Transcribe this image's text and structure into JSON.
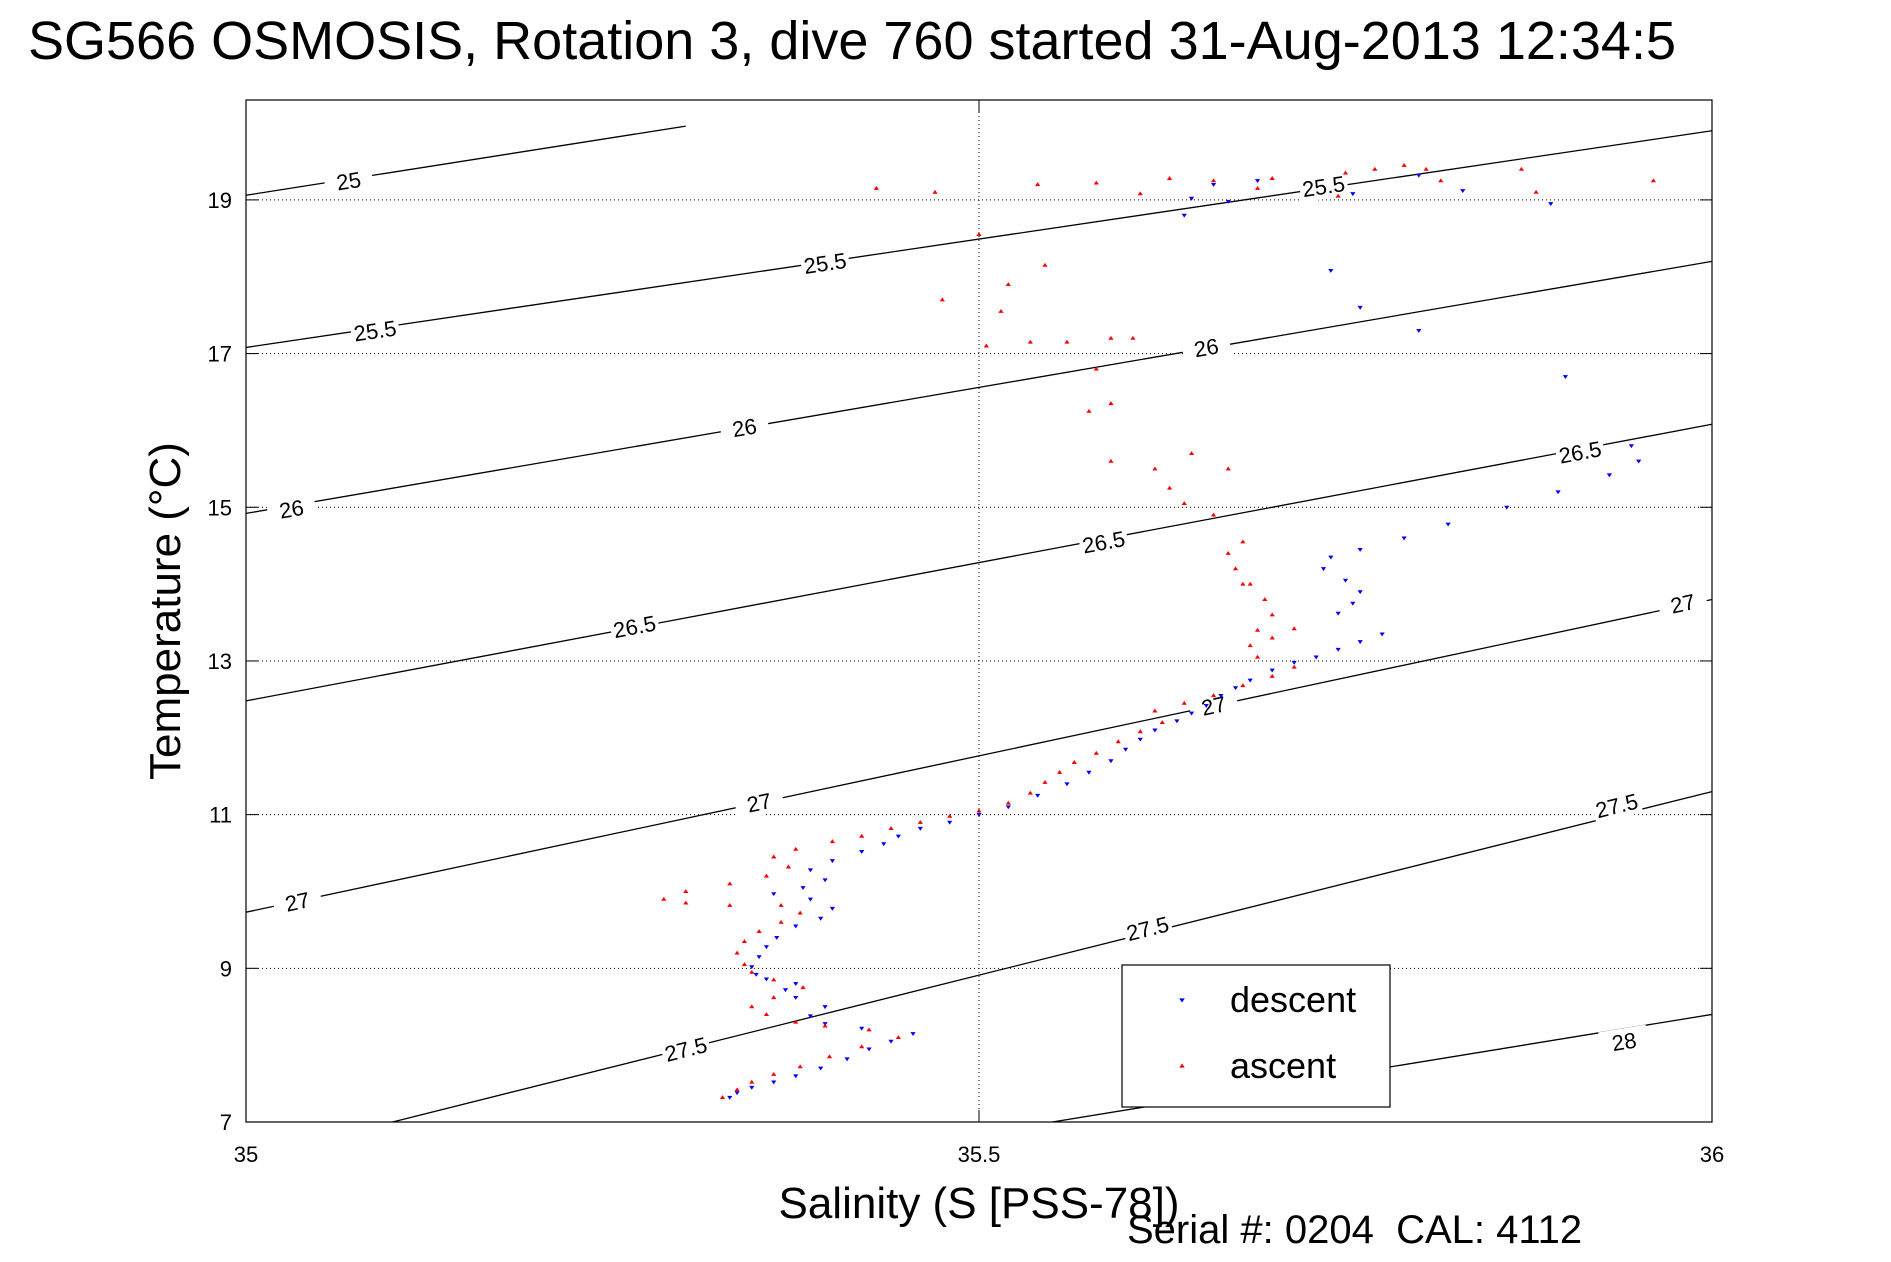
{
  "page": {
    "title": "SG566 OSMOSIS, Rotation 3, dive 760 started 31-Aug-2013 12:34:5",
    "footer": "Serial #: 0204  CAL: 4112"
  },
  "chart_data": {
    "type": "scatter",
    "title": "SG566 OSMOSIS, Rotation 3, dive 760 started 31-Aug-2013 12:34:5",
    "xlabel": "Salinity (S [PSS-78])",
    "ylabel": "Temperature (°C)",
    "xlim": [
      35,
      36
    ],
    "ylim": [
      7,
      20.3
    ],
    "x_ticks": [
      35,
      35.5,
      36
    ],
    "x_tick_labels": [
      "35",
      "35.5",
      "36"
    ],
    "y_ticks": [
      7,
      9,
      11,
      13,
      15,
      17,
      19
    ],
    "y_tick_labels": [
      "7",
      "9",
      "11",
      "13",
      "15",
      "17",
      "19"
    ],
    "grid": "dotted",
    "legend": {
      "placement": "bottom-right-inside",
      "entries": [
        "descent",
        "ascent"
      ]
    },
    "density_contours": [
      {
        "label": "25",
        "points": [
          [
            35.0,
            19.06
          ],
          [
            35.3,
            19.96
          ]
        ],
        "labels_at": [
          [
            35.07,
            19.25
          ]
        ]
      },
      {
        "label": "25.5",
        "points": [
          [
            35.0,
            17.08
          ],
          [
            36.0,
            19.9
          ]
        ],
        "labels_at": [
          [
            35.088,
            17.3
          ],
          [
            35.395,
            18.18
          ],
          [
            35.735,
            19.18
          ]
        ]
      },
      {
        "label": "26",
        "points": [
          [
            35.0,
            14.92
          ],
          [
            36.0,
            18.2
          ]
        ],
        "labels_at": [
          [
            35.031,
            14.98
          ],
          [
            35.34,
            16.04
          ],
          [
            35.655,
            17.08
          ]
        ]
      },
      {
        "label": "26.5",
        "points": [
          [
            35.0,
            12.48
          ],
          [
            36.0,
            16.08
          ]
        ],
        "labels_at": [
          [
            35.265,
            13.45
          ],
          [
            35.585,
            14.55
          ],
          [
            35.91,
            15.72
          ]
        ]
      },
      {
        "label": "27",
        "points": [
          [
            35.0,
            9.73
          ],
          [
            36.0,
            13.8
          ]
        ],
        "labels_at": [
          [
            35.035,
            9.87
          ],
          [
            35.35,
            11.16
          ],
          [
            35.66,
            12.42
          ],
          [
            35.98,
            13.75
          ]
        ]
      },
      {
        "label": "27.5",
        "points": [
          [
            35.1,
            7.0
          ],
          [
            36.0,
            11.3
          ]
        ],
        "labels_at": [
          [
            35.3,
            7.95
          ],
          [
            35.615,
            9.52
          ],
          [
            35.935,
            11.12
          ]
        ]
      },
      {
        "label": "28",
        "points": [
          [
            35.55,
            7.0
          ],
          [
            36.0,
            8.4
          ]
        ],
        "labels_at": [
          [
            35.94,
            8.05
          ]
        ]
      }
    ],
    "series": [
      {
        "name": "descent",
        "color": "#0000ff",
        "marker": "triangle-down",
        "points": [
          [
            35.33,
            7.32
          ],
          [
            35.335,
            7.38
          ],
          [
            35.345,
            7.45
          ],
          [
            35.36,
            7.52
          ],
          [
            35.375,
            7.6
          ],
          [
            35.392,
            7.7
          ],
          [
            35.41,
            7.82
          ],
          [
            35.425,
            7.95
          ],
          [
            35.44,
            8.05
          ],
          [
            35.455,
            8.15
          ],
          [
            35.42,
            8.22
          ],
          [
            35.395,
            8.28
          ],
          [
            35.385,
            8.38
          ],
          [
            35.395,
            8.5
          ],
          [
            35.375,
            8.62
          ],
          [
            35.368,
            8.72
          ],
          [
            35.375,
            8.8
          ],
          [
            35.355,
            8.86
          ],
          [
            35.348,
            8.92
          ],
          [
            35.345,
            9.02
          ],
          [
            35.35,
            9.15
          ],
          [
            35.355,
            9.28
          ],
          [
            35.362,
            9.4
          ],
          [
            35.375,
            9.55
          ],
          [
            35.392,
            9.65
          ],
          [
            35.4,
            9.78
          ],
          [
            35.385,
            9.9
          ],
          [
            35.36,
            9.97
          ],
          [
            35.38,
            10.05
          ],
          [
            35.395,
            10.15
          ],
          [
            35.385,
            10.28
          ],
          [
            35.4,
            10.4
          ],
          [
            35.42,
            10.52
          ],
          [
            35.435,
            10.62
          ],
          [
            35.445,
            10.72
          ],
          [
            35.46,
            10.82
          ],
          [
            35.48,
            10.9
          ],
          [
            35.5,
            11.0
          ],
          [
            35.52,
            11.1
          ],
          [
            35.54,
            11.25
          ],
          [
            35.56,
            11.4
          ],
          [
            35.575,
            11.55
          ],
          [
            35.59,
            11.7
          ],
          [
            35.6,
            11.85
          ],
          [
            35.61,
            11.98
          ],
          [
            35.62,
            12.1
          ],
          [
            35.635,
            12.22
          ],
          [
            35.645,
            12.32
          ],
          [
            35.655,
            12.42
          ],
          [
            35.665,
            12.55
          ],
          [
            35.675,
            12.65
          ],
          [
            35.685,
            12.75
          ],
          [
            35.7,
            12.88
          ],
          [
            35.715,
            12.98
          ],
          [
            35.73,
            13.05
          ],
          [
            35.745,
            13.15
          ],
          [
            35.76,
            13.25
          ],
          [
            35.775,
            13.35
          ],
          [
            35.745,
            13.62
          ],
          [
            35.755,
            13.75
          ],
          [
            35.76,
            13.9
          ],
          [
            35.75,
            14.05
          ],
          [
            35.735,
            14.2
          ],
          [
            35.74,
            14.35
          ],
          [
            35.76,
            14.45
          ],
          [
            35.79,
            14.6
          ],
          [
            35.82,
            14.78
          ],
          [
            35.86,
            15.0
          ],
          [
            35.895,
            15.2
          ],
          [
            35.93,
            15.42
          ],
          [
            35.95,
            15.6
          ],
          [
            35.945,
            15.8
          ],
          [
            35.9,
            16.7
          ],
          [
            35.8,
            17.3
          ],
          [
            35.76,
            17.6
          ],
          [
            35.74,
            18.08
          ],
          [
            35.67,
            18.98
          ],
          [
            35.645,
            19.02
          ],
          [
            35.66,
            19.2
          ],
          [
            35.69,
            19.25
          ],
          [
            35.8,
            19.32
          ],
          [
            35.83,
            19.12
          ],
          [
            35.755,
            19.08
          ],
          [
            35.64,
            18.8
          ],
          [
            35.89,
            18.95
          ]
        ]
      },
      {
        "name": "ascent",
        "color": "#ff0000",
        "marker": "triangle-up",
        "points": [
          [
            35.325,
            7.32
          ],
          [
            35.335,
            7.42
          ],
          [
            35.345,
            7.52
          ],
          [
            35.36,
            7.62
          ],
          [
            35.378,
            7.72
          ],
          [
            35.398,
            7.85
          ],
          [
            35.42,
            7.98
          ],
          [
            35.445,
            8.1
          ],
          [
            35.425,
            8.2
          ],
          [
            35.395,
            8.25
          ],
          [
            35.375,
            8.3
          ],
          [
            35.355,
            8.4
          ],
          [
            35.345,
            8.5
          ],
          [
            35.36,
            8.62
          ],
          [
            35.38,
            8.75
          ],
          [
            35.36,
            8.85
          ],
          [
            35.345,
            8.95
          ],
          [
            35.34,
            9.05
          ],
          [
            35.335,
            9.2
          ],
          [
            35.34,
            9.35
          ],
          [
            35.35,
            9.48
          ],
          [
            35.365,
            9.6
          ],
          [
            35.378,
            9.72
          ],
          [
            35.365,
            9.82
          ],
          [
            35.33,
            9.82
          ],
          [
            35.3,
            9.85
          ],
          [
            35.285,
            9.9
          ],
          [
            35.3,
            10.0
          ],
          [
            35.33,
            10.1
          ],
          [
            35.355,
            10.2
          ],
          [
            35.37,
            10.32
          ],
          [
            35.36,
            10.45
          ],
          [
            35.375,
            10.55
          ],
          [
            35.4,
            10.65
          ],
          [
            35.42,
            10.72
          ],
          [
            35.44,
            10.82
          ],
          [
            35.46,
            10.9
          ],
          [
            35.48,
            10.98
          ],
          [
            35.5,
            11.05
          ],
          [
            35.52,
            11.15
          ],
          [
            35.535,
            11.28
          ],
          [
            35.545,
            11.42
          ],
          [
            35.555,
            11.55
          ],
          [
            35.565,
            11.68
          ],
          [
            35.58,
            11.8
          ],
          [
            35.595,
            11.95
          ],
          [
            35.61,
            12.08
          ],
          [
            35.625,
            12.2
          ],
          [
            35.62,
            12.35
          ],
          [
            35.64,
            12.45
          ],
          [
            35.66,
            12.55
          ],
          [
            35.68,
            12.68
          ],
          [
            35.7,
            12.8
          ],
          [
            35.715,
            12.92
          ],
          [
            35.69,
            13.05
          ],
          [
            35.685,
            13.2
          ],
          [
            35.69,
            13.4
          ],
          [
            35.7,
            13.6
          ],
          [
            35.695,
            13.8
          ],
          [
            35.685,
            14.0
          ],
          [
            35.675,
            14.2
          ],
          [
            35.67,
            14.4
          ],
          [
            35.68,
            14.55
          ],
          [
            35.66,
            14.9
          ],
          [
            35.64,
            15.05
          ],
          [
            35.63,
            15.25
          ],
          [
            35.62,
            15.5
          ],
          [
            35.645,
            15.7
          ],
          [
            35.59,
            15.6
          ],
          [
            35.575,
            16.25
          ],
          [
            35.59,
            16.35
          ],
          [
            35.58,
            16.8
          ],
          [
            35.605,
            17.2
          ],
          [
            35.56,
            17.15
          ],
          [
            35.535,
            17.15
          ],
          [
            35.505,
            17.1
          ],
          [
            35.515,
            17.55
          ],
          [
            35.52,
            17.9
          ],
          [
            35.545,
            18.15
          ],
          [
            35.59,
            17.2
          ],
          [
            35.475,
            17.7
          ],
          [
            35.5,
            18.55
          ],
          [
            35.47,
            19.1
          ],
          [
            35.43,
            19.15
          ],
          [
            35.54,
            19.2
          ],
          [
            35.58,
            19.22
          ],
          [
            35.63,
            19.28
          ],
          [
            35.66,
            19.25
          ],
          [
            35.7,
            19.28
          ],
          [
            35.75,
            19.35
          ],
          [
            35.77,
            19.4
          ],
          [
            35.79,
            19.45
          ],
          [
            35.805,
            19.4
          ],
          [
            35.815,
            19.25
          ],
          [
            35.87,
            19.4
          ],
          [
            35.88,
            19.1
          ],
          [
            35.96,
            19.25
          ],
          [
            35.61,
            19.08
          ],
          [
            35.69,
            19.15
          ],
          [
            35.745,
            19.05
          ],
          [
            35.68,
            14.0
          ],
          [
            35.7,
            13.3
          ],
          [
            35.715,
            13.42
          ],
          [
            35.67,
            15.5
          ]
        ]
      }
    ]
  }
}
